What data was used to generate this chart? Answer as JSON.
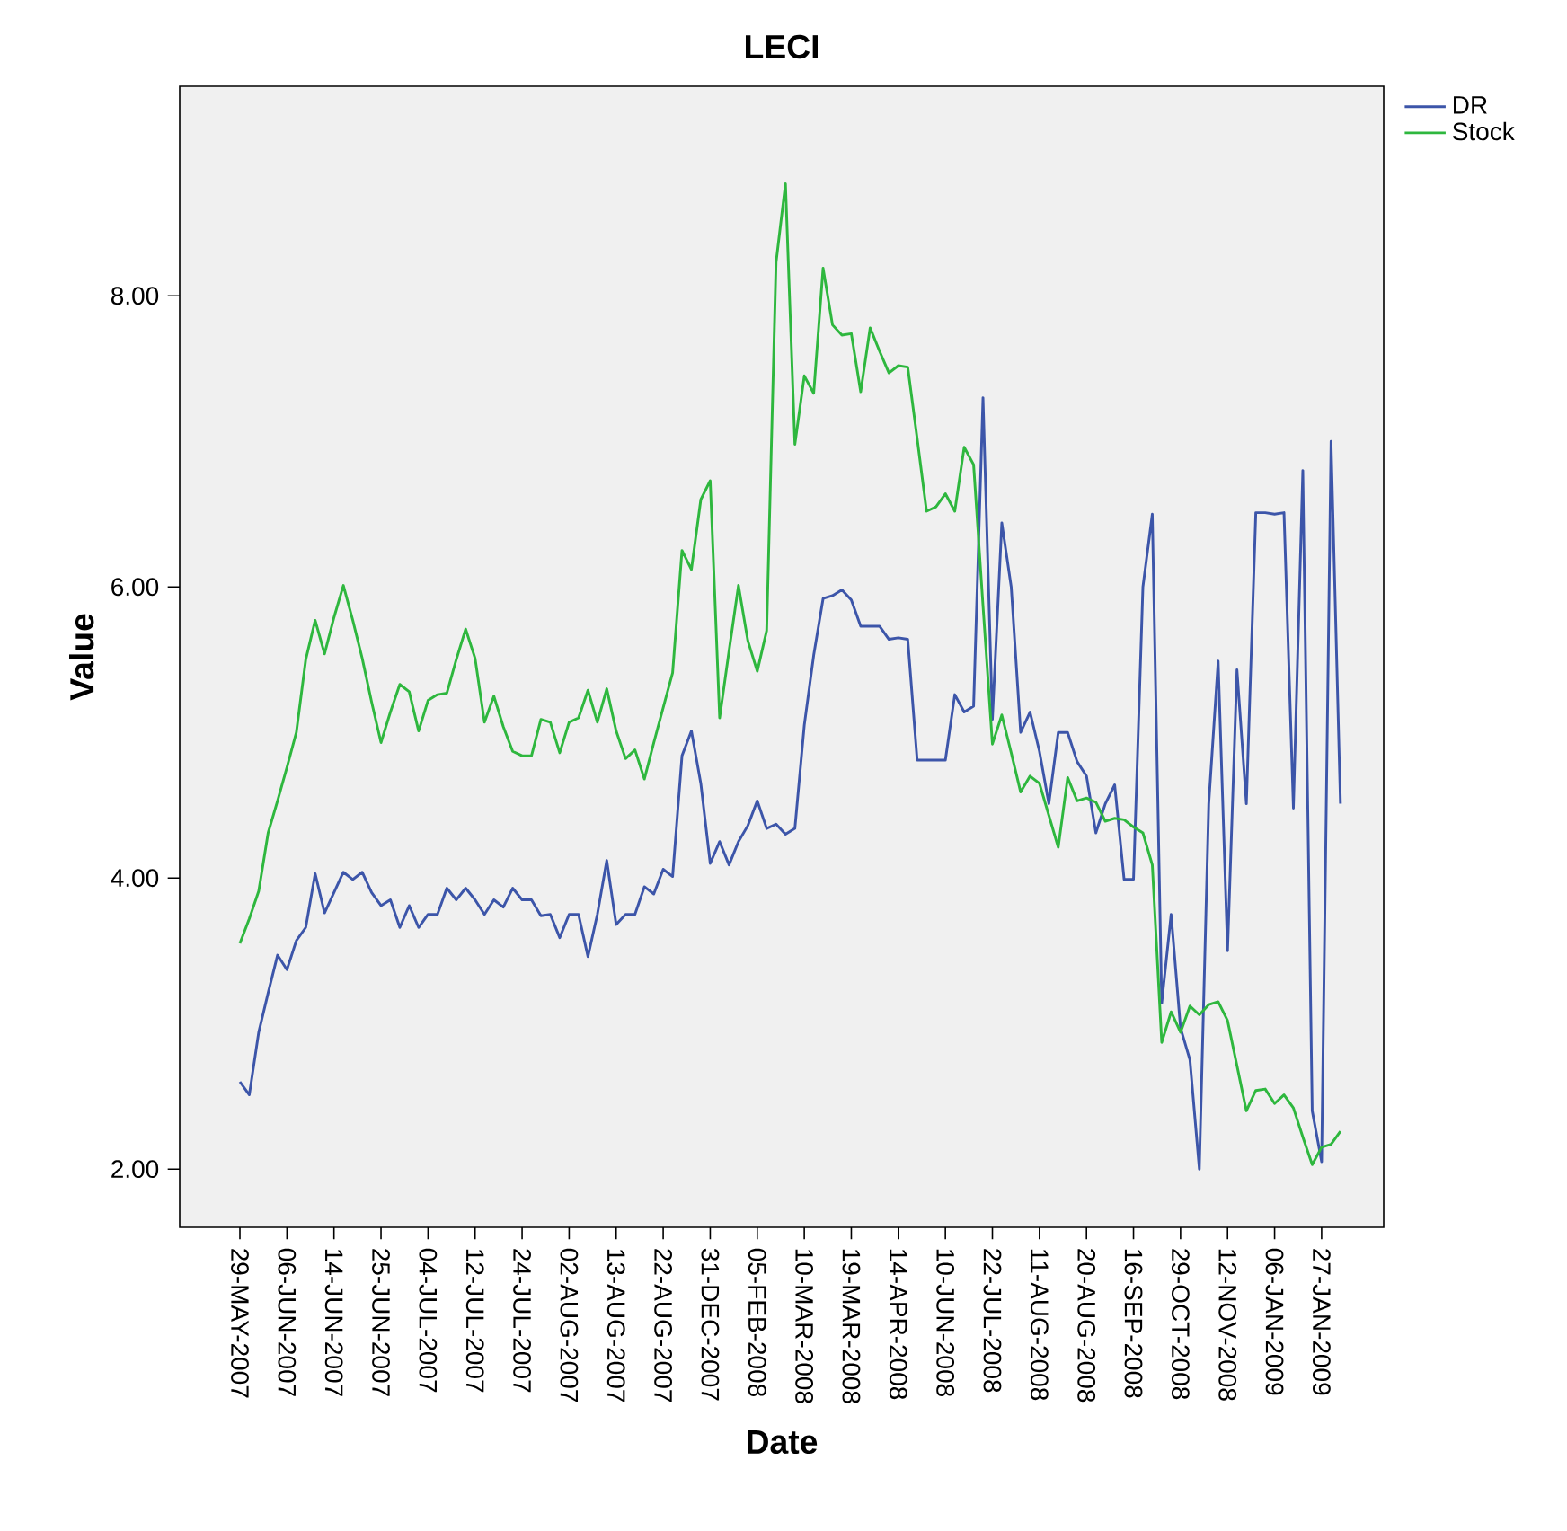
{
  "chart_data": {
    "type": "line",
    "title": "LECI",
    "xlabel": "Date",
    "ylabel": "Value",
    "categories": [
      "29-MAY-2007",
      null,
      null,
      null,
      null,
      "06-JUN-2007",
      null,
      null,
      null,
      null,
      "14-JUN-2007",
      null,
      null,
      null,
      null,
      "25-JUN-2007",
      null,
      null,
      null,
      null,
      "04-JUL-2007",
      null,
      null,
      null,
      null,
      "12-JUL-2007",
      null,
      null,
      null,
      null,
      "24-JUL-2007",
      null,
      null,
      null,
      null,
      "02-AUG-2007",
      null,
      null,
      null,
      null,
      "13-AUG-2007",
      null,
      null,
      null,
      null,
      "22-AUG-2007",
      null,
      null,
      null,
      null,
      "31-DEC-2007",
      null,
      null,
      null,
      null,
      "05-FEB-2008",
      null,
      null,
      null,
      null,
      "10-MAR-2008",
      null,
      null,
      null,
      null,
      "19-MAR-2008",
      null,
      null,
      null,
      null,
      "14-APR-2008",
      null,
      null,
      null,
      null,
      "10-JUN-2008",
      null,
      null,
      null,
      null,
      "22-JUL-2008",
      null,
      null,
      null,
      null,
      "11-AUG-2008",
      null,
      null,
      null,
      null,
      "20-AUG-2008",
      null,
      null,
      null,
      null,
      "16-SEP-2008",
      null,
      null,
      null,
      null,
      "29-OCT-2008",
      null,
      null,
      null,
      null,
      "12-NOV-2008",
      null,
      null,
      null,
      null,
      "06-JAN-2009",
      null,
      null,
      null,
      null,
      "27-JAN-2009",
      null,
      null
    ],
    "series": [
      {
        "name": "DR",
        "color": "#3c55a9",
        "values": [
          2.6,
          2.51,
          2.94,
          3.21,
          3.47,
          3.37,
          3.57,
          3.66,
          4.03,
          3.76,
          3.9,
          4.04,
          3.99,
          4.04,
          3.9,
          3.81,
          3.85,
          3.66,
          3.81,
          3.66,
          3.75,
          3.75,
          3.93,
          3.85,
          3.93,
          3.85,
          3.75,
          3.85,
          3.8,
          3.93,
          3.85,
          3.85,
          3.74,
          3.75,
          3.59,
          3.75,
          3.75,
          3.46,
          3.75,
          4.12,
          3.68,
          3.75,
          3.75,
          3.94,
          3.89,
          4.06,
          4.01,
          4.84,
          5.01,
          4.65,
          4.1,
          4.25,
          4.09,
          4.25,
          4.36,
          4.53,
          4.34,
          4.37,
          4.3,
          4.34,
          5.05,
          5.53,
          5.92,
          5.94,
          5.98,
          5.91,
          5.73,
          5.73,
          5.73,
          5.64,
          5.65,
          5.64,
          4.81,
          4.81,
          4.81,
          4.81,
          5.26,
          5.14,
          5.18,
          7.3,
          5.09,
          6.44,
          6.0,
          5.0,
          5.14,
          4.87,
          4.51,
          5.0,
          5.0,
          4.8,
          4.7,
          4.31,
          4.51,
          4.64,
          3.99,
          3.99,
          6.0,
          6.5,
          3.14,
          3.75,
          2.97,
          2.75,
          2.0,
          4.51,
          5.49,
          3.5,
          5.43,
          4.51,
          6.51,
          6.51,
          6.5,
          6.51,
          4.48,
          6.8,
          2.4,
          2.05,
          7.0,
          4.51
        ]
      },
      {
        "name": "Stock",
        "color": "#2eb73e",
        "values": [
          3.55,
          3.72,
          3.91,
          4.31,
          4.53,
          4.76,
          5.0,
          5.5,
          5.77,
          5.54,
          5.79,
          6.01,
          5.77,
          5.51,
          5.21,
          4.93,
          5.14,
          5.33,
          5.28,
          5.01,
          5.22,
          5.26,
          5.27,
          5.5,
          5.71,
          5.51,
          5.07,
          5.25,
          5.04,
          4.87,
          4.84,
          4.84,
          5.09,
          5.07,
          4.86,
          5.07,
          5.1,
          5.29,
          5.07,
          5.3,
          5.01,
          4.82,
          4.88,
          4.68,
          4.93,
          5.17,
          5.41,
          6.25,
          6.12,
          6.6,
          6.73,
          5.1,
          5.56,
          6.01,
          5.63,
          5.42,
          5.7,
          8.23,
          8.77,
          6.98,
          7.45,
          7.33,
          8.19,
          7.8,
          7.73,
          7.74,
          7.34,
          7.78,
          7.62,
          7.47,
          7.52,
          7.51,
          7.02,
          6.52,
          6.55,
          6.64,
          6.52,
          6.96,
          6.84,
          5.87,
          4.92,
          5.12,
          4.86,
          4.59,
          4.7,
          4.65,
          4.43,
          4.21,
          4.69,
          4.53,
          4.55,
          4.52,
          4.39,
          4.41,
          4.4,
          4.35,
          4.31,
          4.09,
          2.87,
          3.08,
          2.94,
          3.12,
          3.06,
          3.13,
          3.15,
          3.02,
          2.71,
          2.4,
          2.54,
          2.55,
          2.45,
          2.51,
          2.42,
          2.22,
          2.03,
          2.15,
          2.17,
          2.26
        ]
      }
    ],
    "ylim": [
      1.6,
      9.44
    ],
    "yticks": [
      {
        "value": 2,
        "label": "2.00"
      },
      {
        "value": 4,
        "label": "4.00"
      },
      {
        "value": 6,
        "label": "6.00"
      },
      {
        "value": 8,
        "label": "8.00"
      }
    ],
    "legend": "top right"
  }
}
